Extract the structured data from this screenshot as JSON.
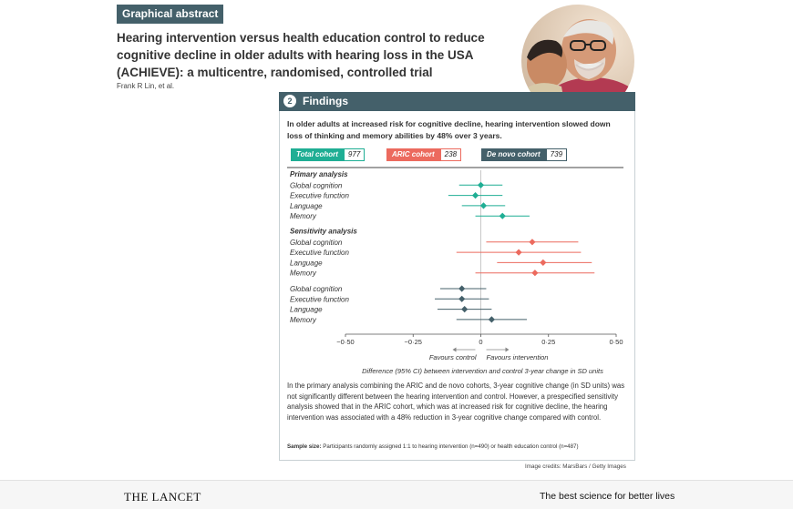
{
  "badge": "Graphical abstract",
  "title": "Hearing intervention versus health education control to reduce cognitive decline in older adults with hearing loss in the USA (ACHIEVE): a multicentre, randomised, controlled trial",
  "authors": "Frank R Lin, et al.",
  "panel": {
    "number": "2",
    "title": "Findings",
    "summary": "In older adults at increased risk for cognitive decline, hearing intervention slowed down loss of thinking and memory abilities by 48% over 3 years."
  },
  "cohorts": [
    {
      "label": "Total cohort",
      "value": "977",
      "color": "#1fae94"
    },
    {
      "label": "ARIC cohort",
      "value": "238",
      "color": "#ec6a5e"
    },
    {
      "label": "De novo cohort",
      "value": "739",
      "color": "#44606a"
    }
  ],
  "section_labels": {
    "primary": "Primary analysis",
    "sensitivity": "Sensitivity analysis"
  },
  "chart_data": {
    "type": "forest",
    "xlim": [
      -0.5,
      0.5
    ],
    "ticks": [
      "−0·50",
      "−0·25",
      "0",
      "0·25",
      "0·50"
    ],
    "tick_values": [
      -0.5,
      -0.25,
      0,
      0.25,
      0.5
    ],
    "xlabel": "Difference (95% CI) between intervention and control 3-year change in SD units",
    "favours_left": "Favours control",
    "favours_right": "Favours intervention",
    "groups": [
      {
        "name": "Primary analysis",
        "color": "#1fae94",
        "rows": [
          {
            "label": "Global cognition",
            "est": 0.0,
            "lo": -0.08,
            "hi": 0.08
          },
          {
            "label": "Executive function",
            "est": -0.02,
            "lo": -0.12,
            "hi": 0.08
          },
          {
            "label": "Language",
            "est": 0.01,
            "lo": -0.07,
            "hi": 0.09
          },
          {
            "label": "Memory",
            "est": 0.08,
            "lo": -0.02,
            "hi": 0.18
          }
        ]
      },
      {
        "name": "Sensitivity analysis",
        "color": "#ec6a5e",
        "rows": [
          {
            "label": "Global cognition",
            "est": 0.19,
            "lo": 0.02,
            "hi": 0.36
          },
          {
            "label": "Executive function",
            "est": 0.14,
            "lo": -0.09,
            "hi": 0.37
          },
          {
            "label": "Language",
            "est": 0.23,
            "lo": 0.06,
            "hi": 0.41
          },
          {
            "label": "Memory",
            "est": 0.2,
            "lo": -0.02,
            "hi": 0.42
          }
        ]
      },
      {
        "name": "",
        "color": "#44606a",
        "rows": [
          {
            "label": "Global cognition",
            "est": -0.07,
            "lo": -0.15,
            "hi": 0.02
          },
          {
            "label": "Executive function",
            "est": -0.07,
            "lo": -0.17,
            "hi": 0.03
          },
          {
            "label": "Language",
            "est": -0.06,
            "lo": -0.16,
            "hi": 0.04
          },
          {
            "label": "Memory",
            "est": 0.04,
            "lo": -0.09,
            "hi": 0.17
          }
        ]
      }
    ]
  },
  "result_text": "In the primary analysis combining the ARIC and de novo cohorts, 3-year cognitive change (in SD units) was not significantly different between the hearing intervention and control. However, a prespecified sensitivity analysis showed that in the ARIC cohort, which was at increased risk for cognitive decline, the hearing intervention was associated with a 48% reduction in 3-year cognitive change compared with control.",
  "sample": {
    "label": "Sample size:",
    "text": "Participants randomly assigned 1:1 to hearing intervention (n=490) or health education control (n=487)"
  },
  "credits": "Image credits: MarsBars / Getty Images",
  "footer": {
    "logo": "THE LANCET",
    "tagline": "The best science for better lives"
  }
}
